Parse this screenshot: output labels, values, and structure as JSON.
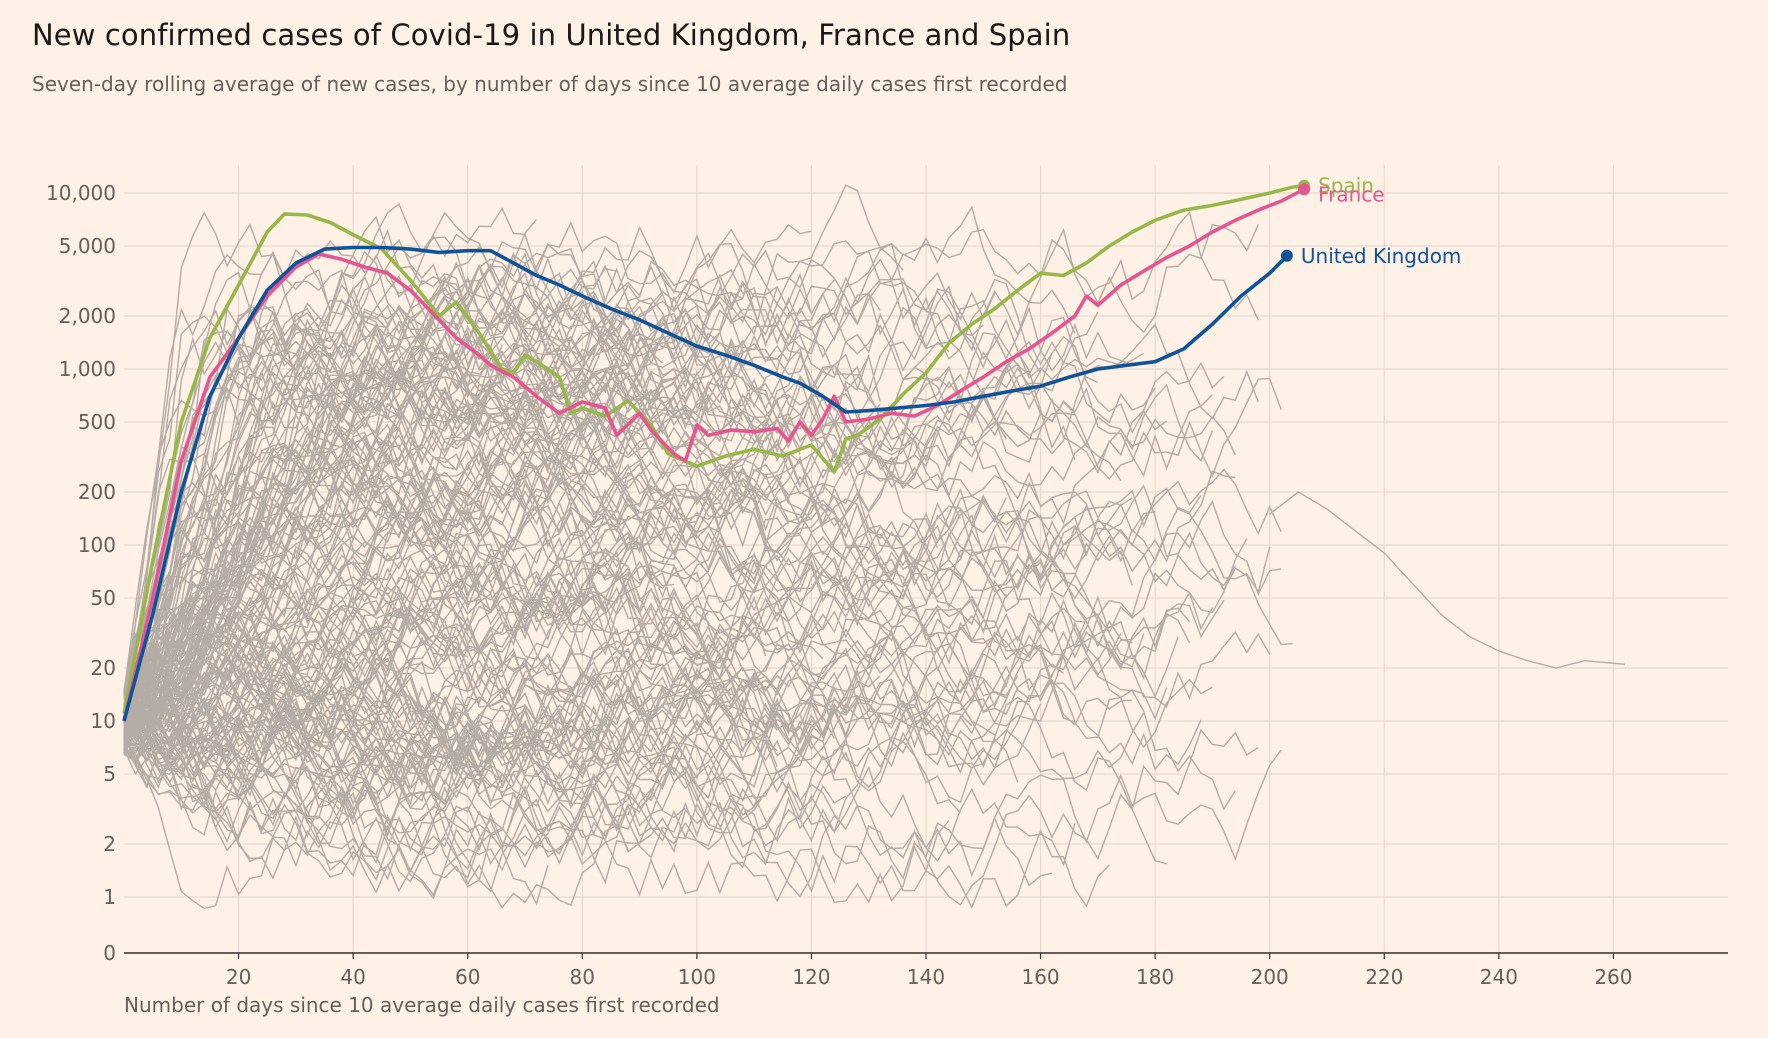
{
  "header": {
    "title": "New confirmed cases of Covid-19 in United Kingdom, France and Spain",
    "subtitle": "Seven-day rolling average of new cases, by number of days since 10 average daily cases first recorded"
  },
  "chart_data": {
    "type": "line",
    "title": "New confirmed cases of Covid-19 in United Kingdom, France and Spain",
    "subtitle": "Seven-day rolling average of new cases, by number of days since 10 average daily cases first recorded",
    "xlabel": "Number of days since 10 average daily cases first recorded",
    "ylabel": "",
    "xlim": [
      0,
      280
    ],
    "x_ticks": [
      20,
      40,
      60,
      80,
      100,
      120,
      140,
      160,
      180,
      200,
      220,
      240,
      260
    ],
    "y_scale": "log",
    "y_ticks": [
      0,
      1,
      2,
      5,
      10,
      20,
      50,
      100,
      200,
      500,
      1000,
      2000,
      5000,
      10000
    ],
    "y_tick_labels": [
      "0",
      "1",
      "2",
      "5",
      "10",
      "20",
      "50",
      "100",
      "200",
      "500",
      "1,000",
      "2,000",
      "5,000",
      "10,000"
    ],
    "grid": true,
    "colors": {
      "background": "#fff1e5",
      "grid": "#e6d9ce",
      "axis": "#33302e",
      "other_countries": "#b4aca5",
      "spain": "#96b84b",
      "france": "#e5558f",
      "uk": "#0f5499"
    },
    "series": [
      {
        "name": "Spain",
        "color": "#96b84b",
        "x": [
          0,
          5,
          10,
          15,
          20,
          25,
          28,
          32,
          36,
          40,
          45,
          50,
          55,
          58,
          62,
          66,
          68,
          70,
          72,
          76,
          78,
          80,
          84,
          88,
          92,
          95,
          100,
          105,
          110,
          115,
          120,
          124,
          126,
          128,
          132,
          136,
          140,
          144,
          148,
          152,
          156,
          160,
          164,
          168,
          172,
          176,
          180,
          185,
          190,
          195,
          200,
          204,
          206
        ],
        "values": [
          11,
          80,
          500,
          1500,
          3000,
          6000,
          7600,
          7500,
          6800,
          5800,
          4800,
          3200,
          2000,
          2400,
          1600,
          1000,
          950,
          1200,
          1100,
          900,
          560,
          600,
          540,
          660,
          480,
          330,
          280,
          320,
          350,
          320,
          370,
          260,
          400,
          420,
          520,
          720,
          950,
          1400,
          1800,
          2200,
          2800,
          3500,
          3400,
          4000,
          5000,
          6000,
          7000,
          8000,
          8500,
          9200,
          10000,
          10800,
          11000
        ]
      },
      {
        "name": "France",
        "color": "#e5558f",
        "x": [
          0,
          5,
          10,
          15,
          20,
          25,
          30,
          34,
          38,
          42,
          46,
          50,
          55,
          58,
          62,
          64,
          68,
          72,
          76,
          80,
          84,
          86,
          90,
          92,
          96,
          98,
          100,
          102,
          106,
          110,
          114,
          116,
          118,
          120,
          122,
          124,
          126,
          130,
          134,
          138,
          142,
          146,
          150,
          154,
          158,
          162,
          166,
          168,
          170,
          174,
          178,
          182,
          186,
          190,
          194,
          198,
          202,
          206
        ],
        "values": [
          10,
          50,
          300,
          900,
          1500,
          2600,
          3800,
          4500,
          4200,
          3800,
          3500,
          2800,
          1900,
          1500,
          1200,
          1050,
          900,
          700,
          560,
          650,
          600,
          420,
          560,
          450,
          330,
          300,
          480,
          420,
          450,
          440,
          460,
          390,
          500,
          420,
          520,
          700,
          500,
          520,
          560,
          540,
          620,
          750,
          900,
          1100,
          1300,
          1600,
          2000,
          2600,
          2300,
          3000,
          3600,
          4300,
          5000,
          6000,
          7000,
          8000,
          9000,
          10500
        ]
      },
      {
        "name": "United Kingdom",
        "color": "#0f5499",
        "x": [
          0,
          5,
          10,
          15,
          20,
          25,
          30,
          35,
          40,
          45,
          50,
          55,
          60,
          64,
          68,
          72,
          76,
          80,
          85,
          90,
          95,
          100,
          105,
          110,
          115,
          118,
          122,
          126,
          130,
          135,
          140,
          145,
          150,
          155,
          160,
          165,
          170,
          175,
          180,
          185,
          190,
          195,
          200,
          203
        ],
        "values": [
          10,
          40,
          200,
          700,
          1500,
          2800,
          4000,
          4800,
          4900,
          4900,
          4800,
          4600,
          4700,
          4700,
          4000,
          3400,
          3000,
          2600,
          2200,
          1900,
          1600,
          1350,
          1200,
          1050,
          900,
          830,
          700,
          570,
          580,
          600,
          620,
          650,
          700,
          750,
          800,
          900,
          1000,
          1050,
          1100,
          1300,
          1800,
          2600,
          3500,
          4400
        ]
      }
    ],
    "labels": [
      {
        "series": "Spain",
        "text": "Spain"
      },
      {
        "series": "France",
        "text": "France"
      },
      {
        "series": "United Kingdom",
        "text": "United Kingdom"
      }
    ],
    "background_countries_note": "many other countries in grey"
  }
}
